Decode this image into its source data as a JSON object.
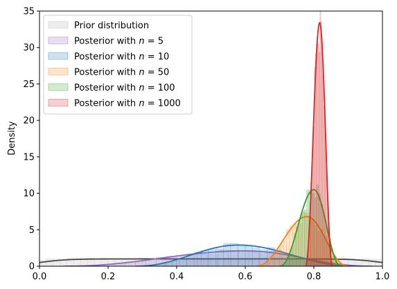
{
  "chart_data": {
    "type": "area",
    "title": "",
    "xlabel": "",
    "ylabel": "Density",
    "xlim": [
      0.0,
      1.0
    ],
    "ylim": [
      0,
      35
    ],
    "x_ticks": [
      "0.0",
      "0.2",
      "0.4",
      "0.6",
      "0.8",
      "1.0"
    ],
    "y_ticks": [
      "0",
      "5",
      "10",
      "15",
      "20",
      "25",
      "30",
      "35"
    ],
    "grid": false,
    "legend_position": "top-left",
    "series": [
      {
        "name": "Prior distribution",
        "legend_html": "Prior distribution",
        "color": "#444444",
        "fill": "#b8b8b8",
        "kind": "uniform",
        "range": [
          0.0,
          1.0
        ],
        "peak_density": 1.0
      },
      {
        "name": "Posterior with n=5",
        "legend_html": "Posterior with <tspan font-style=\"italic\">n</tspan> = 5",
        "color": "#9467bd",
        "fill": "#9467bd",
        "kind": "bump",
        "range": [
          0.07,
          0.97
        ],
        "mode": 0.6,
        "peak_density": 2.1
      },
      {
        "name": "Posterior with n=10",
        "legend_html": "Posterior with <tspan font-style=\"italic\">n</tspan> = 10",
        "color": "#1f77b4",
        "fill": "#1f77b4",
        "kind": "bump",
        "range": [
          0.28,
          0.92
        ],
        "mode": 0.58,
        "peak_density": 2.9
      },
      {
        "name": "Posterior with n=50",
        "legend_html": "Posterior with <tspan font-style=\"italic\">n</tspan> = 50",
        "color": "#ff7f0e",
        "fill": "#ff7f0e",
        "kind": "bump",
        "range": [
          0.63,
          0.9
        ],
        "mode": 0.78,
        "peak_density": 6.8
      },
      {
        "name": "Posterior with n=100",
        "legend_html": "Posterior with <tspan font-style=\"italic\">n</tspan> = 100",
        "color": "#2ca02c",
        "fill": "#2ca02c",
        "kind": "bump",
        "range": [
          0.7,
          0.88
        ],
        "mode": 0.8,
        "peak_density": 10.5
      },
      {
        "name": "Posterior with n=1000",
        "legend_html": "Posterior with <tspan font-style=\"italic\">n</tspan> = 1000",
        "color": "#d62728",
        "fill": "#d62728",
        "kind": "bump",
        "range": [
          0.775,
          0.855
        ],
        "mode": 0.817,
        "peak_density": 33.4
      }
    ]
  }
}
